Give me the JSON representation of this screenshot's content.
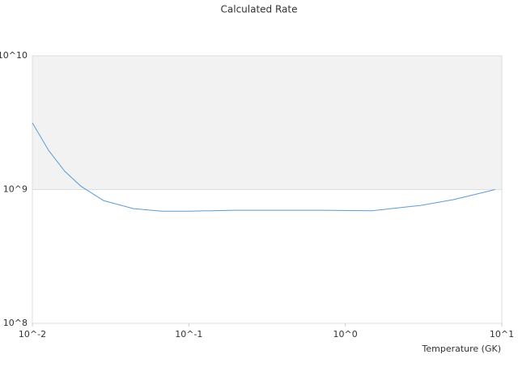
{
  "chart_data": {
    "type": "line",
    "title": "Calculated Rate",
    "x_label": "Temperature (GK)",
    "x": [
      0.01,
      0.0127,
      0.0161,
      0.0204,
      0.0285,
      0.0442,
      0.0673,
      0.102,
      0.197,
      0.72,
      1.48,
      3.0,
      4.9,
      6.97,
      9.05
    ],
    "series": [
      {
        "name": "Rate",
        "color": "#5b9bd5",
        "values": [
          3150000000,
          1960000000,
          1370000000,
          1060000000,
          828000000,
          720000000,
          690000000,
          690000000,
          700000000,
          700000000,
          695000000,
          760000000,
          840000000,
          927000000,
          1000000000
        ]
      }
    ],
    "xscale": "log",
    "yscale": "log",
    "xlim": [
      0.01,
      10
    ],
    "ylim": [
      100000000,
      10000000000
    ],
    "xticks": [
      {
        "value": 0.01,
        "label": "10^-2"
      },
      {
        "value": 0.1,
        "label": "10^-1"
      },
      {
        "value": 1,
        "label": "10^0"
      },
      {
        "value": 10,
        "label": "10^1"
      }
    ],
    "yticks": [
      {
        "value": 100000000,
        "label": "10^8"
      },
      {
        "value": 1000000000,
        "label": "10^9"
      },
      {
        "value": 10000000000,
        "label": "10^10"
      }
    ],
    "grid": true,
    "band_color": "#f2f2f2"
  }
}
